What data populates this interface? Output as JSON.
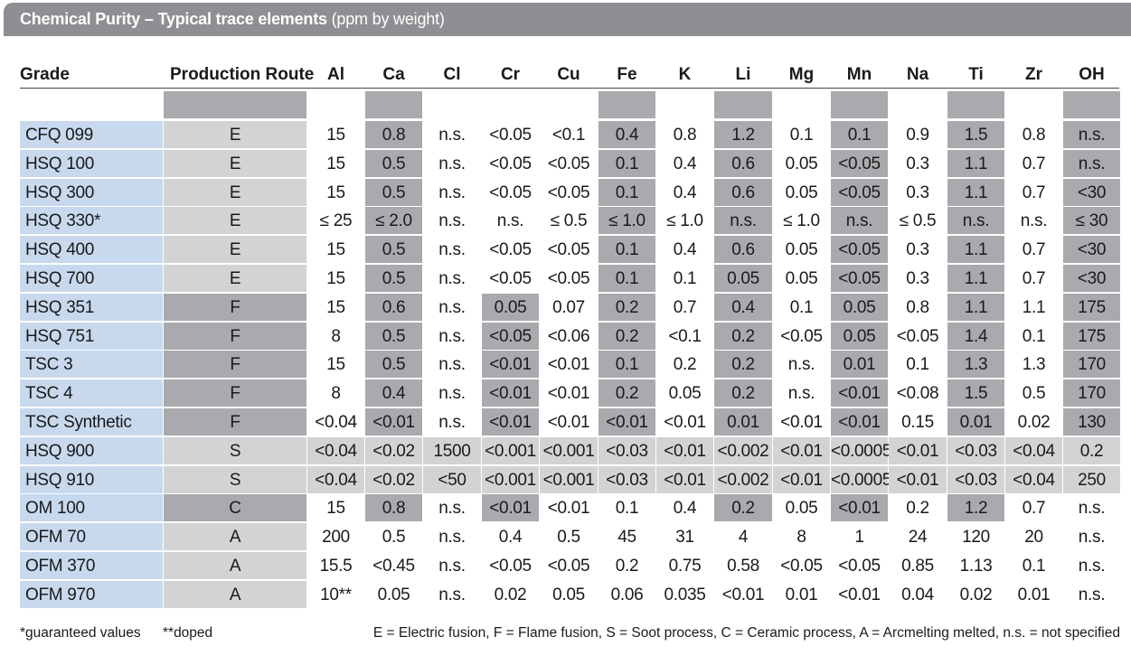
{
  "title": {
    "bold": "Chemical Purity – Typical trace elements",
    "unit": " (ppm by weight)"
  },
  "headers": [
    "Grade",
    "Production Route",
    "Al",
    "Ca",
    "Cl",
    "Cr",
    "Cu",
    "Fe",
    "K",
    "Li",
    "Mg",
    "Mn",
    "Na",
    "Ti",
    "Zr",
    "OH"
  ],
  "rows": [
    {
      "grade": "CFQ 099",
      "route": "E",
      "values": [
        "15",
        "0.8",
        "n.s.",
        "<0.05",
        "<0.1",
        "0.4",
        "0.8",
        "1.2",
        "0.1",
        "0.1",
        "0.9",
        "1.5",
        "0.8",
        "n.s."
      ]
    },
    {
      "grade": "HSQ 100",
      "route": "E",
      "values": [
        "15",
        "0.5",
        "n.s.",
        "<0.05",
        "<0.05",
        "0.1",
        "0.4",
        "0.6",
        "0.05",
        "<0.05",
        "0.3",
        "1.1",
        "0.7",
        "n.s."
      ]
    },
    {
      "grade": "HSQ 300",
      "route": "E",
      "values": [
        "15",
        "0.5",
        "n.s.",
        "<0.05",
        "<0.05",
        "0.1",
        "0.4",
        "0.6",
        "0.05",
        "<0.05",
        "0.3",
        "1.1",
        "0.7",
        "<30"
      ]
    },
    {
      "grade": "HSQ 330*",
      "route": "E",
      "values": [
        "≤ 25",
        "≤ 2.0",
        "n.s.",
        "n.s.",
        "≤ 0.5",
        "≤ 1.0",
        "≤ 1.0",
        "n.s.",
        "≤ 1.0",
        "n.s.",
        "≤ 0.5",
        "n.s.",
        "n.s.",
        "≤ 30"
      ]
    },
    {
      "grade": "HSQ 400",
      "route": "E",
      "values": [
        "15",
        "0.5",
        "n.s.",
        "<0.05",
        "<0.05",
        "0.1",
        "0.4",
        "0.6",
        "0.05",
        "<0.05",
        "0.3",
        "1.1",
        "0.7",
        "<30"
      ]
    },
    {
      "grade": "HSQ 700",
      "route": "E",
      "values": [
        "15",
        "0.5",
        "n.s.",
        "<0.05",
        "<0.05",
        "0.1",
        "0.1",
        "0.05",
        "0.05",
        "<0.05",
        "0.3",
        "1.1",
        "0.7",
        "<30"
      ]
    },
    {
      "grade": "HSQ 351",
      "route": "F",
      "values": [
        "15",
        "0.6",
        "n.s.",
        "0.05",
        "0.07",
        "0.2",
        "0.7",
        "0.4",
        "0.1",
        "0.05",
        "0.8",
        "1.1",
        "1.1",
        "175"
      ]
    },
    {
      "grade": "HSQ 751",
      "route": "F",
      "values": [
        "8",
        "0.5",
        "n.s.",
        "<0.05",
        "<0.06",
        "0.2",
        "<0.1",
        "0.2",
        "<0.05",
        "0.05",
        "<0.05",
        "1.4",
        "0.1",
        "175"
      ]
    },
    {
      "grade": "TSC 3",
      "route": "F",
      "values": [
        "15",
        "0.5",
        "n.s.",
        "<0.01",
        "<0.01",
        "0.1",
        "0.2",
        "0.2",
        "n.s.",
        "0.01",
        "0.1",
        "1.3",
        "1.3",
        "170"
      ]
    },
    {
      "grade": "TSC 4",
      "route": "F",
      "values": [
        "8",
        "0.4",
        "n.s.",
        "<0.01",
        "<0.01",
        "0.2",
        "0.05",
        "0.2",
        "n.s.",
        "<0.01",
        "<0.08",
        "1.5",
        "0.5",
        "170"
      ]
    },
    {
      "grade": "TSC Synthetic",
      "route": "F",
      "values": [
        "<0.04",
        "<0.01",
        "n.s.",
        "<0.01",
        "<0.01",
        "<0.01",
        "<0.01",
        "0.01",
        "<0.01",
        "<0.01",
        "0.15",
        "0.01",
        "0.02",
        "130"
      ]
    },
    {
      "grade": "HSQ 900",
      "route": "S",
      "values": [
        "<0.04",
        "<0.02",
        "1500",
        "<0.001",
        "<0.001",
        "<0.03",
        "<0.01",
        "<0.002",
        "<0.01",
        "<0.0005",
        "<0.01",
        "<0.03",
        "<0.04",
        "0.2"
      ]
    },
    {
      "grade": "HSQ 910",
      "route": "S",
      "values": [
        "<0.04",
        "<0.02",
        "<50",
        "<0.001",
        "<0.001",
        "<0.03",
        "<0.01",
        "<0.002",
        "<0.01",
        "<0.0005",
        "<0.01",
        "<0.03",
        "<0.04",
        "250"
      ]
    },
    {
      "grade": "OM 100",
      "route": "C",
      "values": [
        "15",
        "0.8",
        "n.s.",
        "<0.01",
        "<0.01",
        "0.1",
        "0.4",
        "0.2",
        "0.05",
        "<0.01",
        "0.2",
        "1.2",
        "0.7",
        "n.s."
      ]
    },
    {
      "grade": "OFM 70",
      "route": "A",
      "values": [
        "200",
        "0.5",
        "n.s.",
        "0.4",
        "0.5",
        "45",
        "31",
        "4",
        "8",
        "1",
        "24",
        "120",
        "20",
        "n.s."
      ]
    },
    {
      "grade": "OFM 370",
      "route": "A",
      "values": [
        "15.5",
        "<0.45",
        "n.s.",
        "<0.05",
        "<0.05",
        "0.2",
        "0.75",
        "0.58",
        "<0.05",
        "<0.05",
        "0.85",
        "1.13",
        "0.1",
        "n.s."
      ]
    },
    {
      "grade": "OFM 970",
      "route": "A",
      "values": [
        "10**",
        "0.05",
        "n.s.",
        "0.02",
        "0.05",
        "0.06",
        "0.035",
        "<0.01",
        "0.01",
        "<0.01",
        "0.04",
        "0.02",
        "0.01",
        "n.s."
      ]
    }
  ],
  "footnotes": {
    "guaranteed": "*guaranteed values",
    "doped": "**doped",
    "legend": "E = Electric fusion,  F = Flame fusion,  S = Soot process,  C = Ceramic process,  A = Arcmelting melted,  n.s. = not specified"
  },
  "colors": {
    "blue": "#c8d9ee",
    "dark_gray": "#a8aaad",
    "light_gray": "#d2d3d5",
    "title_bar": "#8d8f92"
  }
}
